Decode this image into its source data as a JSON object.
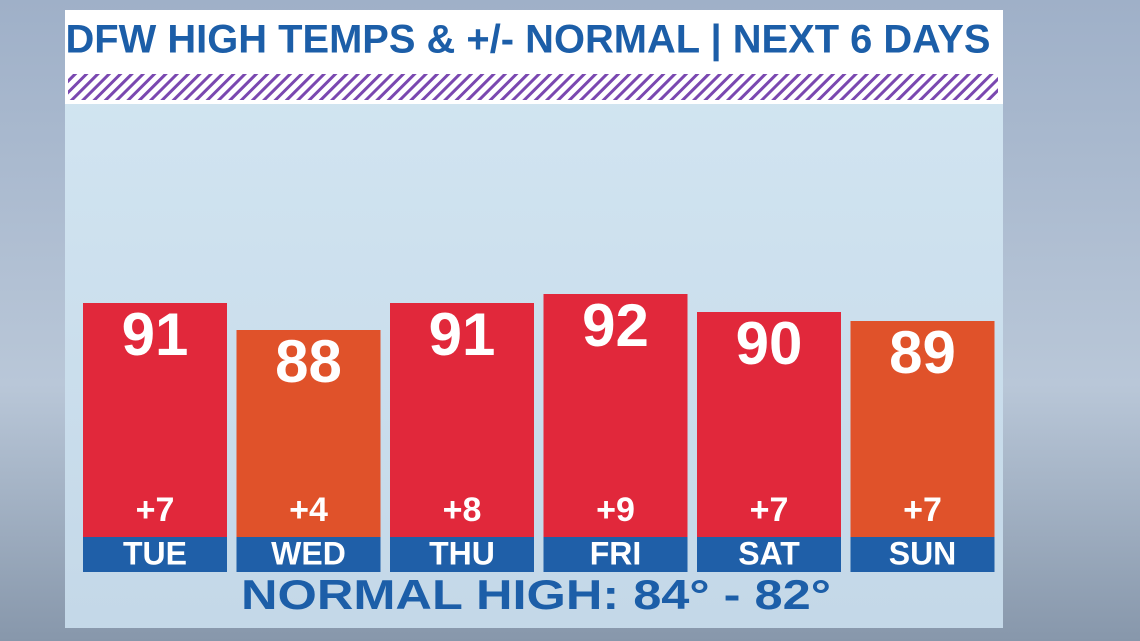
{
  "chart_data": {
    "type": "bar",
    "title": "DFW HIGH TEMPS & +/- NORMAL | NEXT 6 DAYS",
    "subtitle": "NORMAL HIGH: 84° - 82°",
    "categories": [
      "TUE",
      "WED",
      "THU",
      "FRI",
      "SAT",
      "SUN"
    ],
    "values": [
      91,
      88,
      91,
      92,
      90,
      89
    ],
    "colors": [
      "#e1283b",
      "#e0522a",
      "#e1283b",
      "#e1283b",
      "#e1283b",
      "#e0522a"
    ],
    "departures": [
      7,
      4,
      8,
      9,
      7,
      7
    ],
    "departure_labels": [
      "+7",
      "+4",
      "+8",
      "+9",
      "+7",
      "+7"
    ],
    "ylim": [
      65,
      115
    ]
  }
}
